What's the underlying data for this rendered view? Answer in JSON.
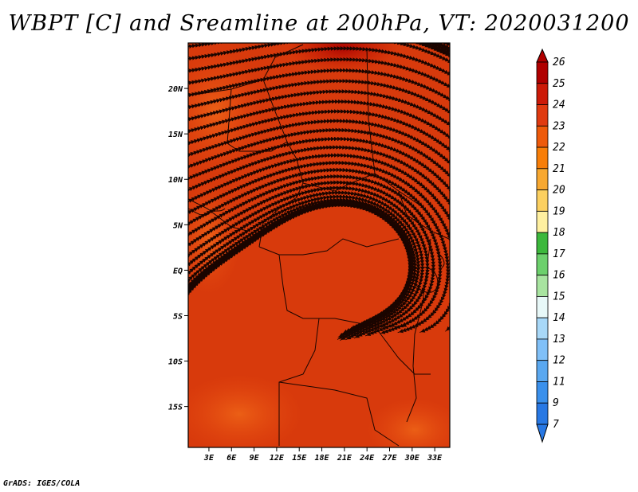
{
  "title": "WBPT [C] and Sreamline at 200hPa, VT: 2020031200",
  "footer": "GrADS: IGES/COLA",
  "map": {
    "lat_labels": [
      "20N",
      "15N",
      "10N",
      "5N",
      "EQ",
      "5S",
      "10S",
      "15S"
    ],
    "lat_values": [
      20,
      15,
      10,
      5,
      0,
      -5,
      -10,
      -15
    ],
    "lon_labels": [
      "3E",
      "6E",
      "9E",
      "12E",
      "15E",
      "18E",
      "21E",
      "24E",
      "27E",
      "30E",
      "33E"
    ],
    "lon_values": [
      3,
      6,
      9,
      12,
      15,
      18,
      21,
      24,
      27,
      30,
      33
    ],
    "fill_color": "#d83a0c",
    "line_color": "#1a0500"
  },
  "colorbar": {
    "labels": [
      "26",
      "25",
      "24",
      "23",
      "22",
      "21",
      "20",
      "19",
      "18",
      "17",
      "16",
      "15",
      "14",
      "13",
      "12",
      "11",
      "9",
      "7"
    ],
    "colors": [
      "#b00000",
      "#cc1a08",
      "#e03a10",
      "#ee5a0a",
      "#f87e08",
      "#f8a830",
      "#fcd060",
      "#fff0a0",
      "#3cb83c",
      "#6cd06c",
      "#a8e4a0",
      "#e8f8f8",
      "#a8d8f8",
      "#80c0f8",
      "#5aa8f0",
      "#3a90ec",
      "#2878e4"
    ]
  }
}
